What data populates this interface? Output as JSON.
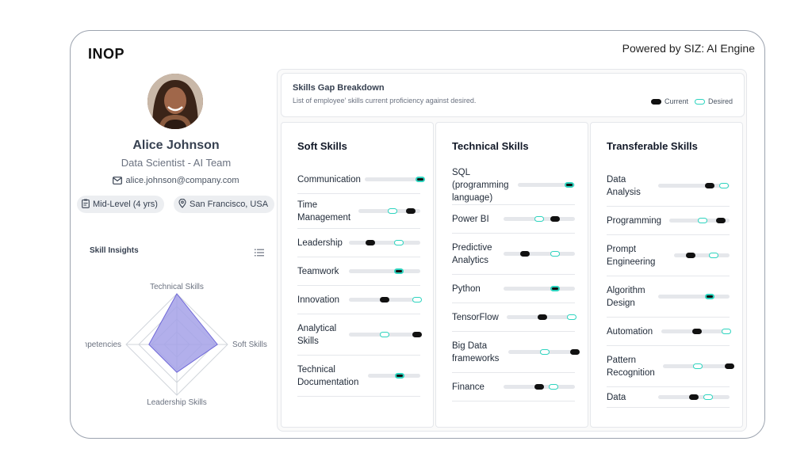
{
  "brand": {
    "logo": "INOP",
    "powered_by": "Powered by SIZ: AI Engine"
  },
  "profile": {
    "name": "Alice Johnson",
    "role": "Data Scientist - AI Team",
    "email": "alice.johnson@company.com",
    "level": "Mid-Level (4 yrs)",
    "location": "San Francisco, USA"
  },
  "insights": {
    "title": "Skill Insights",
    "axes": [
      "Technical Skills",
      "Soft Skills",
      "Leadership Skills",
      "Core Competencies"
    ],
    "values": [
      1.0,
      0.8,
      0.55,
      0.55
    ],
    "fill_color": "#a5a1e8",
    "stroke_color": "#6f68d8"
  },
  "breakdown": {
    "title": "Skills Gap Breakdown",
    "subtitle": "List of employee' skills current proficiency against desired.",
    "legend_current": "Current",
    "legend_desired": "Desired",
    "current_color": "#111111",
    "desired_color": "#2dd4bf"
  },
  "columns": [
    {
      "title": "Soft Skills",
      "skills": [
        {
          "label": "Communication",
          "current": 1.0,
          "desired": 1.0
        },
        {
          "label": "Time Management",
          "current": 0.85,
          "desired": 0.55
        },
        {
          "label": "Leadership",
          "current": 0.3,
          "desired": 0.7
        },
        {
          "label": "Teamwork",
          "current": 0.7,
          "desired": 0.7
        },
        {
          "label": "Innovation",
          "current": 0.5,
          "desired": 0.95
        },
        {
          "label": "Analytical Skills",
          "current": 0.95,
          "desired": 0.5
        },
        {
          "label": "Technical Documentation",
          "current": 0.6,
          "desired": 0.6
        }
      ]
    },
    {
      "title": "Technical Skills",
      "skills": [
        {
          "label": "SQL (programming language)",
          "current": 0.9,
          "desired": 0.9
        },
        {
          "label": "Power BI",
          "current": 0.72,
          "desired": 0.5
        },
        {
          "label": "Predictive Analytics",
          "current": 0.3,
          "desired": 0.72
        },
        {
          "label": "Python",
          "current": 0.72,
          "desired": 0.72
        },
        {
          "label": "TensorFlow",
          "current": 0.52,
          "desired": 0.95
        },
        {
          "label": "Big Data frameworks",
          "current": 1.0,
          "desired": 0.55
        },
        {
          "label": "Finance",
          "current": 0.5,
          "desired": 0.7
        }
      ]
    },
    {
      "title": "Transferable Skills",
      "skills": [
        {
          "label": "Data Analysis",
          "current": 0.72,
          "desired": 0.92
        },
        {
          "label": "Programming",
          "current": 0.85,
          "desired": 0.55
        },
        {
          "label": "Prompt Engineering",
          "current": 0.3,
          "desired": 0.72
        },
        {
          "label": "Algorithm Design",
          "current": 0.72,
          "desired": 0.72
        },
        {
          "label": "Automation",
          "current": 0.52,
          "desired": 0.95
        },
        {
          "label": "Pattern Recognition",
          "current": 1.0,
          "desired": 0.52
        },
        {
          "label": "Data",
          "current": 0.5,
          "desired": 0.7
        }
      ]
    }
  ]
}
